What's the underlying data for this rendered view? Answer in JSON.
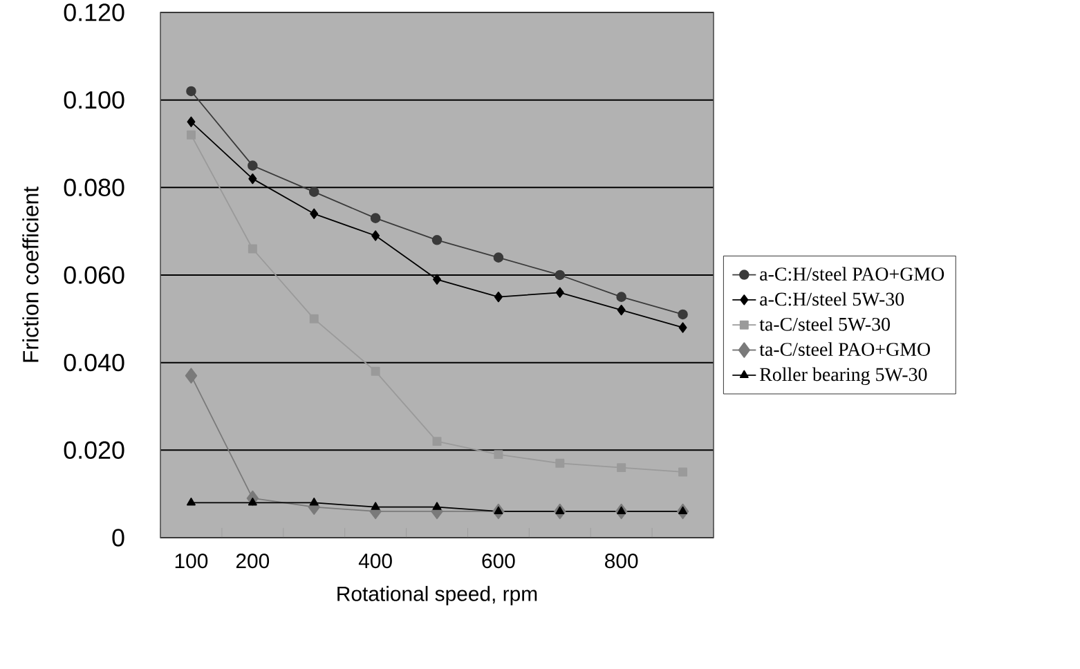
{
  "chart_data": {
    "type": "line",
    "xlabel": "Rotational speed, rpm",
    "ylabel": "Friction coefficient",
    "categories": [
      "100",
      "200",
      null,
      "400",
      null,
      "600",
      null,
      "800",
      null
    ],
    "ylim": [
      0,
      0.12
    ],
    "yticks": [
      0,
      {
        "value": 0.02,
        "label": "0.020"
      },
      {
        "value": 0.04,
        "label": "0.040"
      },
      {
        "value": 0.06,
        "label": "0.060"
      },
      {
        "value": 0.08,
        "label": "0.080"
      },
      {
        "value": 0.1,
        "label": "0.100"
      },
      {
        "value": 0.12,
        "label": "0.120"
      }
    ],
    "grid": "y",
    "legend": "right",
    "series": [
      {
        "name": "a-C:H/steel PAO+GMO",
        "color": "#3a3a3a",
        "marker": "circle",
        "values": [
          0.102,
          0.085,
          0.079,
          0.073,
          0.068,
          0.064,
          0.06,
          0.055,
          0.051
        ]
      },
      {
        "name": "a-C:H/steel  5W-30",
        "color": "#000000",
        "marker": "diamond",
        "values": [
          0.095,
          0.082,
          0.074,
          0.069,
          0.059,
          0.055,
          0.056,
          0.052,
          0.048
        ]
      },
      {
        "name": "ta-C/steel  5W-30",
        "color": "#9a9a9a",
        "marker": "square",
        "values": [
          0.092,
          0.066,
          0.05,
          0.038,
          0.022,
          0.019,
          0.017,
          0.016,
          0.015
        ]
      },
      {
        "name": "ta-C/steel  PAO+GMO",
        "color": "#7a7a7a",
        "marker": "diamond",
        "values": [
          0.037,
          0.009,
          0.007,
          0.006,
          0.006,
          0.006,
          0.006,
          0.006,
          0.006
        ]
      },
      {
        "name": "Roller bearing  5W-30",
        "color": "#000000",
        "marker": "triangle",
        "values": [
          0.008,
          0.008,
          0.008,
          0.007,
          0.007,
          0.006,
          0.006,
          0.006,
          0.006
        ]
      }
    ]
  }
}
